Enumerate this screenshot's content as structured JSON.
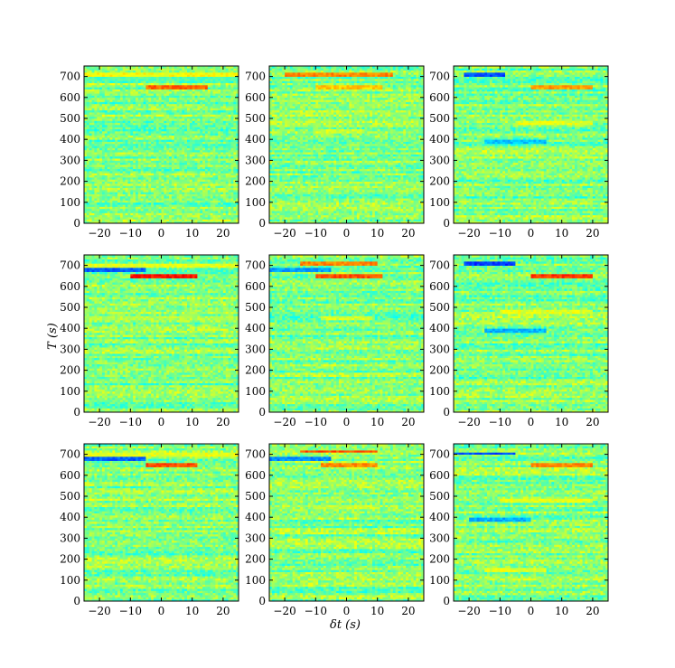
{
  "chart_data": {
    "type": "heatmap",
    "layout": {
      "rows": 3,
      "cols": 3
    },
    "xlabel": "δt (s)",
    "ylabel": "T (s)",
    "xlim": [
      -25,
      25
    ],
    "ylim": [
      0,
      750
    ],
    "xticks": [
      -20,
      -10,
      0,
      10,
      20
    ],
    "yticks": [
      0,
      100,
      200,
      300,
      400,
      500,
      600,
      700
    ],
    "colormap": "jet",
    "colors": {
      "low": "#0000ff",
      "mid": "#7dff7a",
      "high": "#ff2000",
      "background": "#7fe07a"
    },
    "panels": [
      {
        "features": [
          {
            "T": 710,
            "x0": -25,
            "x1": 25,
            "v": 0.62
          },
          {
            "T": 650,
            "x0": -5,
            "x1": 15,
            "v": 0.78
          },
          {
            "T": 690,
            "x0": -25,
            "x1": 25,
            "v": 0.45
          }
        ]
      },
      {
        "features": [
          {
            "T": 710,
            "x0": -20,
            "x1": 15,
            "v": 0.74
          },
          {
            "T": 650,
            "x0": -10,
            "x1": 12,
            "v": 0.68
          },
          {
            "T": 440,
            "x0": -10,
            "x1": 5,
            "v": 0.58
          }
        ]
      },
      {
        "features": [
          {
            "T": 710,
            "x0": -22,
            "x1": -8,
            "v": 0.2
          },
          {
            "T": 650,
            "x0": 0,
            "x1": 20,
            "v": 0.72
          },
          {
            "T": 480,
            "x0": -5,
            "x1": 20,
            "v": 0.6
          },
          {
            "T": 390,
            "x0": -15,
            "x1": 5,
            "v": 0.32
          }
        ]
      },
      {
        "features": [
          {
            "T": 700,
            "x0": -25,
            "x1": 25,
            "v": 0.6
          },
          {
            "T": 680,
            "x0": -25,
            "x1": -5,
            "v": 0.22
          },
          {
            "T": 650,
            "x0": -10,
            "x1": 12,
            "v": 0.86
          },
          {
            "T": 450,
            "x0": -25,
            "x1": 25,
            "v": 0.55
          }
        ]
      },
      {
        "features": [
          {
            "T": 710,
            "x0": -15,
            "x1": 10,
            "v": 0.74
          },
          {
            "T": 680,
            "x0": -25,
            "x1": -5,
            "v": 0.28
          },
          {
            "T": 650,
            "x0": -10,
            "x1": 12,
            "v": 0.8
          },
          {
            "T": 450,
            "x0": -8,
            "x1": 8,
            "v": 0.58
          }
        ]
      },
      {
        "features": [
          {
            "T": 710,
            "x0": -22,
            "x1": -5,
            "v": 0.18
          },
          {
            "T": 650,
            "x0": 0,
            "x1": 20,
            "v": 0.82
          },
          {
            "T": 480,
            "x0": -10,
            "x1": 20,
            "v": 0.6
          },
          {
            "T": 390,
            "x0": -15,
            "x1": 5,
            "v": 0.3
          }
        ]
      },
      {
        "features": [
          {
            "T": 700,
            "x0": -25,
            "x1": 25,
            "v": 0.6
          },
          {
            "T": 680,
            "x0": -25,
            "x1": -5,
            "v": 0.22
          },
          {
            "T": 650,
            "x0": -5,
            "x1": 12,
            "v": 0.8
          }
        ]
      },
      {
        "features": [
          {
            "T": 715,
            "x0": -15,
            "x1": 10,
            "v": 0.8
          },
          {
            "T": 680,
            "x0": -25,
            "x1": -5,
            "v": 0.26
          },
          {
            "T": 650,
            "x0": -8,
            "x1": 10,
            "v": 0.74
          },
          {
            "T": 450,
            "x0": -10,
            "x1": 10,
            "v": 0.57
          }
        ]
      },
      {
        "features": [
          {
            "T": 705,
            "x0": -25,
            "x1": -5,
            "v": 0.2
          },
          {
            "T": 650,
            "x0": 0,
            "x1": 20,
            "v": 0.74
          },
          {
            "T": 480,
            "x0": -10,
            "x1": 20,
            "v": 0.6
          },
          {
            "T": 390,
            "x0": -20,
            "x1": 0,
            "v": 0.3
          },
          {
            "T": 150,
            "x0": -15,
            "x1": 5,
            "v": 0.6
          }
        ]
      }
    ]
  }
}
